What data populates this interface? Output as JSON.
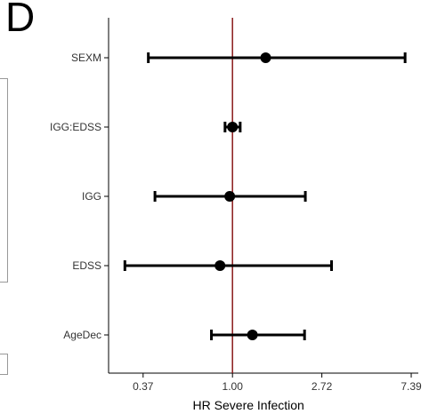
{
  "panel_label": "D",
  "chart_data": {
    "type": "forest",
    "xlabel": "HR Severe Infection",
    "x_scale": "log",
    "x_ticks": [
      "0.37",
      "1.00",
      "2.72",
      "7.39"
    ],
    "x_tick_values": [
      0.3679,
      1.0,
      2.7183,
      7.3891
    ],
    "xlim": [
      0.25,
      8.0
    ],
    "reference_line": 1.0,
    "reference_color": "#8b1a1a",
    "point_color": "#000000",
    "categories": [
      "SEXM",
      "IGG:EDSS",
      "IGG",
      "EDSS",
      "AgeDec"
    ],
    "estimates": [
      1.45,
      1.0,
      0.97,
      0.87,
      1.25
    ],
    "lower": [
      0.39,
      0.92,
      0.42,
      0.3,
      0.79
    ],
    "upper": [
      6.9,
      1.09,
      2.26,
      3.03,
      2.24
    ]
  }
}
